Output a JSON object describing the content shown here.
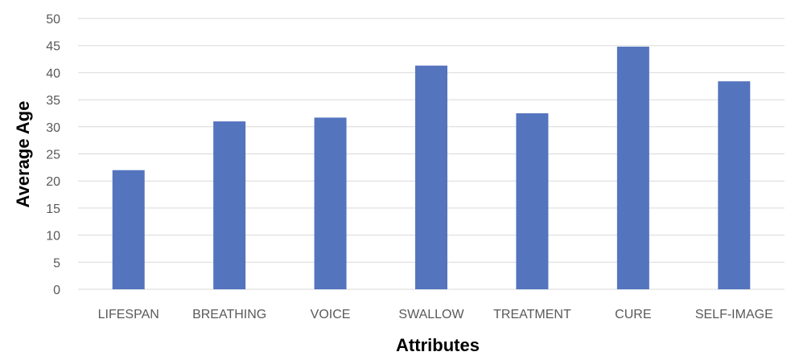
{
  "chart_data": {
    "type": "bar",
    "title": "",
    "xlabel": "Attributes",
    "ylabel": "Average Age",
    "categories": [
      "LIFESPAN",
      "BREATHING",
      "VOICE",
      "SWALLOW",
      "TREATMENT",
      "CURE",
      "SELF-IMAGE"
    ],
    "values": [
      22.0,
      31.0,
      31.7,
      41.3,
      32.5,
      44.8,
      38.4
    ],
    "ylim": [
      0,
      50
    ],
    "yticks": [
      "0",
      "5",
      "10",
      "15",
      "20",
      "25",
      "30",
      "35",
      "40",
      "45",
      "50"
    ],
    "grid": true,
    "legend": "none",
    "colors": {
      "bar": "#5574be",
      "grid": "#d9d9d9",
      "tick_text": "#595959"
    }
  }
}
